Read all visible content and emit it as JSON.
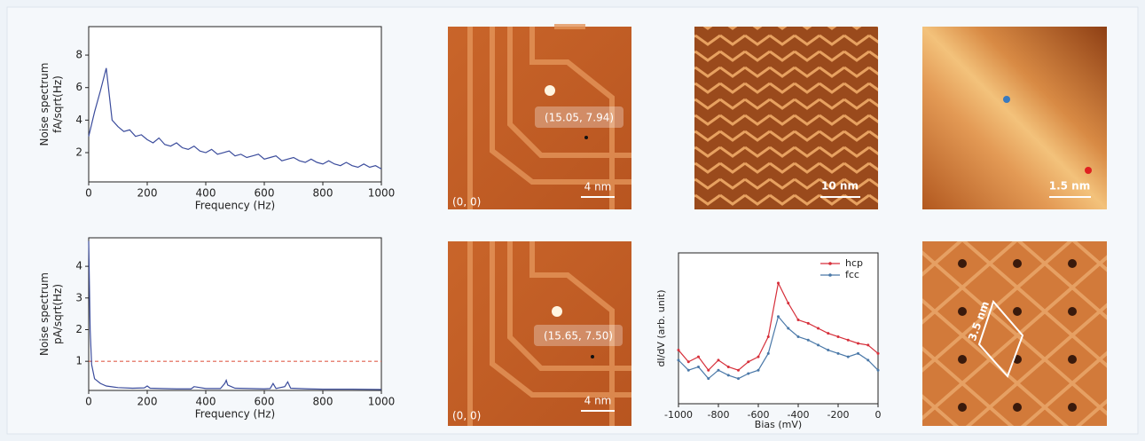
{
  "chart_data": [
    {
      "type": "line",
      "ylabel": [
        "Noise spectrum",
        "fA/sqrt(Hz)"
      ],
      "xlabel": "Frequency (Hz)",
      "color": "#3b4c9c",
      "xlim": [
        0,
        1000
      ],
      "xticks": [
        0,
        200,
        400,
        600,
        800,
        1000
      ],
      "ylim": [
        0.2,
        9.75
      ],
      "yticks": [
        2,
        4,
        6,
        8
      ],
      "x": [
        0,
        20,
        40,
        60,
        80,
        100,
        120,
        140,
        160,
        180,
        200,
        220,
        240,
        260,
        280,
        300,
        320,
        340,
        360,
        380,
        400,
        420,
        440,
        460,
        480,
        500,
        520,
        540,
        560,
        580,
        600,
        620,
        640,
        660,
        680,
        700,
        720,
        740,
        760,
        780,
        800,
        820,
        840,
        860,
        880,
        900,
        920,
        940,
        960,
        980,
        1000
      ],
      "values": [
        3.0,
        4.5,
        5.8,
        7.2,
        4.0,
        3.6,
        3.3,
        3.4,
        3.0,
        3.1,
        2.8,
        2.6,
        2.9,
        2.5,
        2.4,
        2.6,
        2.3,
        2.2,
        2.4,
        2.1,
        2.0,
        2.2,
        1.9,
        2.0,
        2.1,
        1.8,
        1.9,
        1.7,
        1.8,
        1.9,
        1.6,
        1.7,
        1.8,
        1.5,
        1.6,
        1.7,
        1.5,
        1.4,
        1.6,
        1.4,
        1.3,
        1.5,
        1.3,
        1.2,
        1.4,
        1.2,
        1.1,
        1.3,
        1.1,
        1.2,
        1.0
      ]
    },
    {
      "type": "line",
      "ylabel": [
        "Noise spectrum",
        "pA/sqrt(Hz)"
      ],
      "xlabel": "Frequency (Hz)",
      "color": "#3b4c9c",
      "xlim": [
        0,
        1000
      ],
      "xticks": [
        0,
        200,
        400,
        600,
        800,
        1000
      ],
      "ylim": [
        0.08,
        4.9
      ],
      "yticks": [
        1,
        2,
        3,
        4
      ],
      "hline": {
        "value": 1,
        "color": "#e0604f"
      },
      "x": [
        0,
        5,
        10,
        20,
        40,
        60,
        100,
        150,
        190,
        200,
        210,
        250,
        300,
        350,
        360,
        400,
        450,
        465,
        470,
        475,
        500,
        550,
        600,
        620,
        630,
        640,
        670,
        680,
        690,
        750,
        800,
        900,
        1000
      ],
      "values": [
        4.8,
        2.0,
        0.9,
        0.45,
        0.3,
        0.22,
        0.17,
        0.15,
        0.16,
        0.22,
        0.15,
        0.14,
        0.13,
        0.13,
        0.2,
        0.14,
        0.14,
        0.3,
        0.4,
        0.25,
        0.15,
        0.14,
        0.13,
        0.14,
        0.3,
        0.14,
        0.2,
        0.35,
        0.15,
        0.13,
        0.12,
        0.12,
        0.11
      ]
    },
    {
      "type": "line",
      "ylabel": [
        "dI/dV (arb. unit)"
      ],
      "xlabel": "Bias (mV)",
      "legend": "upper right",
      "xlim": [
        -1000,
        0
      ],
      "xticks": [
        -1000,
        -800,
        -600,
        -400,
        -200,
        0
      ],
      "ylim": [
        0.1,
        1.0
      ],
      "x": [
        -1000,
        -950,
        -900,
        -850,
        -800,
        -750,
        -700,
        -650,
        -600,
        -550,
        -500,
        -450,
        -400,
        -350,
        -300,
        -250,
        -200,
        -150,
        -100,
        -50,
        0
      ],
      "series": [
        {
          "name": "hcp",
          "color": "#d62f3a",
          "values": [
            0.42,
            0.35,
            0.38,
            0.3,
            0.36,
            0.32,
            0.3,
            0.35,
            0.38,
            0.5,
            0.82,
            0.7,
            0.6,
            0.58,
            0.55,
            0.52,
            0.5,
            0.48,
            0.46,
            0.45,
            0.4
          ]
        },
        {
          "name": "fcc",
          "color": "#4a78a8",
          "values": [
            0.36,
            0.3,
            0.32,
            0.25,
            0.3,
            0.27,
            0.25,
            0.28,
            0.3,
            0.4,
            0.62,
            0.55,
            0.5,
            0.48,
            0.45,
            0.42,
            0.4,
            0.38,
            0.4,
            0.36,
            0.3
          ]
        }
      ]
    }
  ],
  "images": [
    {
      "coordinate": "(15.05, 7.94)",
      "scale": "4 nm",
      "origin": "(0, 0)"
    },
    {
      "coordinate": "(15.65, 7.50)",
      "scale": "4 nm",
      "origin": "(0, 0)"
    },
    {
      "scale": "10 nm"
    },
    {
      "scale": "1.5 nm"
    },
    {
      "scale": "3.5 nm"
    }
  ]
}
